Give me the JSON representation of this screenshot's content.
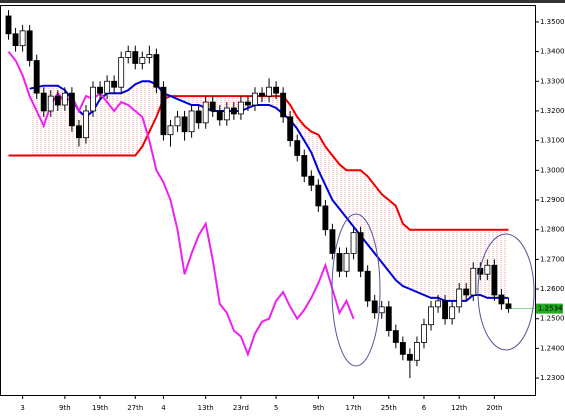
{
  "chart_data": {
    "type": "candlestick",
    "categories": [
      null,
      null,
      "3",
      null,
      null,
      null,
      null,
      null,
      "9th",
      null,
      null,
      null,
      null,
      "19th",
      null,
      null,
      null,
      null,
      "27th",
      null,
      null,
      null,
      "4",
      null,
      null,
      null,
      null,
      null,
      "13th",
      null,
      null,
      null,
      null,
      "23rd",
      null,
      null,
      null,
      null,
      "5",
      null,
      null,
      null,
      null,
      null,
      "9th",
      null,
      null,
      null,
      null,
      "17th",
      null,
      null,
      null,
      null,
      "25th",
      null,
      null,
      null,
      null,
      "6",
      null,
      null,
      null,
      null,
      "12th",
      null,
      null,
      null,
      null,
      "20th",
      null,
      null
    ],
    "open": [
      1.352,
      1.346,
      1.342,
      1.347,
      1.337,
      1.326,
      1.32,
      1.325,
      1.322,
      1.326,
      1.315,
      1.311,
      1.32,
      1.328,
      1.326,
      1.33,
      1.328,
      1.338,
      1.34,
      1.336,
      1.338,
      1.339,
      1.328,
      1.312,
      1.315,
      1.318,
      1.313,
      1.32,
      1.316,
      1.323,
      1.32,
      1.317,
      1.321,
      1.319,
      1.323,
      1.322,
      1.326,
      1.325,
      1.328,
      1.326,
      1.318,
      1.31,
      1.305,
      1.298,
      1.295,
      1.288,
      1.28,
      1.272,
      1.266,
      1.272,
      1.279,
      1.266,
      1.256,
      1.252,
      1.254,
      1.246,
      1.242,
      1.238,
      1.236,
      1.242,
      1.248,
      1.254,
      1.256,
      1.25,
      1.254,
      1.26,
      1.258,
      1.267,
      1.265,
      1.268,
      1.258,
      1.255
    ],
    "high": [
      1.354,
      1.348,
      1.349,
      1.349,
      1.339,
      1.328,
      1.327,
      1.327,
      1.328,
      1.328,
      1.317,
      1.322,
      1.33,
      1.33,
      1.332,
      1.332,
      1.34,
      1.342,
      1.342,
      1.34,
      1.342,
      1.341,
      1.33,
      1.317,
      1.32,
      1.32,
      1.322,
      1.322,
      1.325,
      1.325,
      1.322,
      1.323,
      1.323,
      1.325,
      1.325,
      1.328,
      1.328,
      1.331,
      1.33,
      1.328,
      1.32,
      1.312,
      1.307,
      1.3,
      1.297,
      1.29,
      1.282,
      1.274,
      1.274,
      1.281,
      1.281,
      1.268,
      1.258,
      1.256,
      1.256,
      1.248,
      1.244,
      1.24,
      1.244,
      1.25,
      1.256,
      1.258,
      1.258,
      1.256,
      1.262,
      1.262,
      1.269,
      1.269,
      1.27,
      1.27,
      1.26,
      1.257
    ],
    "low": [
      1.344,
      1.34,
      1.34,
      1.335,
      1.324,
      1.318,
      1.318,
      1.32,
      1.32,
      1.313,
      1.308,
      1.309,
      1.318,
      1.324,
      1.324,
      1.326,
      1.326,
      1.336,
      1.334,
      1.334,
      1.336,
      1.326,
      1.31,
      1.308,
      1.313,
      1.31,
      1.311,
      1.314,
      1.314,
      1.318,
      1.315,
      1.315,
      1.317,
      1.317,
      1.32,
      1.32,
      1.323,
      1.323,
      1.324,
      1.316,
      1.308,
      1.303,
      1.296,
      1.293,
      1.286,
      1.278,
      1.27,
      1.264,
      1.264,
      1.27,
      1.264,
      1.254,
      1.25,
      1.25,
      1.244,
      1.24,
      1.236,
      1.23,
      1.234,
      1.24,
      1.246,
      1.252,
      1.248,
      1.248,
      1.252,
      1.256,
      1.256,
      1.263,
      1.263,
      1.256,
      1.253,
      1.252
    ],
    "close": [
      1.346,
      1.342,
      1.347,
      1.337,
      1.326,
      1.32,
      1.325,
      1.322,
      1.326,
      1.315,
      1.311,
      1.32,
      1.328,
      1.326,
      1.33,
      1.328,
      1.338,
      1.34,
      1.336,
      1.338,
      1.339,
      1.328,
      1.312,
      1.315,
      1.318,
      1.313,
      1.32,
      1.316,
      1.323,
      1.32,
      1.317,
      1.321,
      1.319,
      1.323,
      1.322,
      1.326,
      1.325,
      1.328,
      1.326,
      1.318,
      1.31,
      1.305,
      1.298,
      1.295,
      1.288,
      1.28,
      1.272,
      1.266,
      1.272,
      1.279,
      1.266,
      1.256,
      1.252,
      1.254,
      1.246,
      1.242,
      1.238,
      1.236,
      1.242,
      1.248,
      1.254,
      1.256,
      1.25,
      1.254,
      1.26,
      1.258,
      1.267,
      1.265,
      1.268,
      1.258,
      1.255,
      1.2534
    ],
    "series": [
      {
        "color": "#ee0000",
        "values": [
          1.305,
          1.305,
          1.305,
          1.305,
          1.305,
          1.305,
          1.305,
          1.305,
          1.305,
          1.305,
          1.305,
          1.305,
          1.305,
          1.305,
          1.305,
          1.305,
          1.305,
          1.305,
          1.305,
          1.308,
          1.313,
          1.318,
          1.324,
          1.325,
          1.325,
          1.325,
          1.325,
          1.325,
          1.325,
          1.325,
          1.325,
          1.325,
          1.325,
          1.325,
          1.325,
          1.325,
          1.325,
          1.325,
          1.325,
          1.325,
          1.322,
          1.318,
          1.315,
          1.313,
          1.312,
          1.308,
          1.305,
          1.302,
          1.3,
          1.3,
          1.3,
          1.298,
          1.295,
          1.292,
          1.29,
          1.288,
          1.282,
          1.28,
          1.28,
          1.28,
          1.28,
          1.28,
          1.28,
          1.28,
          1.28,
          1.28,
          1.28,
          1.28,
          1.28,
          1.28,
          1.28,
          1.28
        ]
      },
      {
        "color": "#0000dd",
        "values": [
          null,
          null,
          null,
          1.3275,
          1.328,
          1.3285,
          1.3285,
          1.3285,
          1.327,
          1.324,
          1.32,
          1.318,
          1.32,
          1.324,
          1.326,
          1.326,
          1.326,
          1.327,
          1.329,
          1.33,
          1.33,
          1.329,
          1.326,
          1.325,
          1.324,
          1.323,
          1.322,
          1.322,
          1.321,
          1.32,
          1.32,
          1.32,
          1.32,
          1.32,
          1.321,
          1.322,
          1.322,
          1.322,
          1.321,
          1.319,
          1.317,
          1.314,
          1.31,
          1.306,
          1.3,
          1.295,
          1.29,
          1.287,
          1.284,
          1.281,
          1.278,
          1.275,
          1.272,
          1.269,
          1.266,
          1.263,
          1.261,
          1.26,
          1.259,
          1.258,
          1.257,
          1.257,
          1.256,
          1.256,
          1.256,
          1.256,
          1.258,
          1.258,
          1.257,
          1.257,
          1.257,
          1.257
        ]
      },
      {
        "color": "#ee22ee",
        "values": [
          1.34,
          1.337,
          1.332,
          1.325,
          1.32,
          1.315,
          1.322,
          1.326,
          1.323,
          1.325,
          1.32,
          1.325,
          1.324,
          1.326,
          1.323,
          1.32,
          1.323,
          1.322,
          1.32,
          1.318,
          1.31,
          1.3,
          1.296,
          1.29,
          1.28,
          1.265,
          1.272,
          1.278,
          1.282,
          1.27,
          1.255,
          1.252,
          1.246,
          1.244,
          1.238,
          1.245,
          1.249,
          1.25,
          1.256,
          1.259,
          1.254,
          1.25,
          1.253,
          1.257,
          1.262,
          1.268,
          1.26,
          1.252,
          1.256,
          1.25,
          null,
          null,
          null,
          null,
          null,
          null,
          null,
          null,
          null,
          null,
          null,
          null,
          null,
          null,
          null,
          null,
          null,
          null,
          null,
          null,
          null,
          null
        ]
      }
    ],
    "last_price": 1.2534,
    "ylim": [
      1.2243,
      1.3557
    ],
    "yticks": [
      {
        "value": 1.35,
        "label": "1.35000"
      },
      {
        "value": 1.34,
        "label": "1.34000"
      },
      {
        "value": 1.33,
        "label": "1.33000"
      },
      {
        "value": 1.32,
        "label": "1.32000"
      },
      {
        "value": 1.31,
        "label": "1.31000"
      },
      {
        "value": 1.3,
        "label": "1.30000"
      },
      {
        "value": 1.29,
        "label": "1.29000"
      },
      {
        "value": 1.28,
        "label": "1.28000"
      },
      {
        "value": 1.27,
        "label": "1.27000"
      },
      {
        "value": 1.26,
        "label": "1.26000"
      },
      {
        "value": 1.25,
        "label": "1.25000"
      },
      {
        "value": 1.24,
        "label": "1.24000"
      },
      {
        "value": 1.23,
        "label": "1.23000"
      }
    ]
  }
}
